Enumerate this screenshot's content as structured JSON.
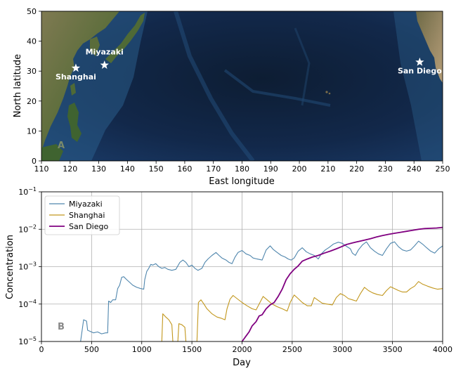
{
  "chart_data": [
    {
      "type": "map",
      "panel_label": "A",
      "xlabel": "East longitude",
      "ylabel": "North latitude",
      "xlim": [
        110,
        250
      ],
      "ylim": [
        0,
        50
      ],
      "xticks": [
        110,
        120,
        130,
        140,
        150,
        160,
        170,
        180,
        190,
        200,
        210,
        220,
        230,
        240,
        250
      ],
      "yticks": [
        0,
        10,
        20,
        30,
        40,
        50
      ],
      "markers": [
        {
          "label": "Miyazaki",
          "lon": 132,
          "lat": 32
        },
        {
          "label": "Shanghai",
          "lon": 122,
          "lat": 31
        },
        {
          "label": "San Diego",
          "lon": 242,
          "lat": 33
        }
      ]
    },
    {
      "type": "line",
      "panel_label": "B",
      "xlabel": "Day",
      "ylabel": "Concentration",
      "xlim": [
        0,
        4000
      ],
      "ylim": [
        1e-05,
        0.1
      ],
      "yscale": "log",
      "grid": true,
      "legend_position": "top-left",
      "xticks": [
        0,
        500,
        1000,
        1500,
        2000,
        2500,
        3000,
        3500,
        4000
      ],
      "yticks": [
        {
          "value": 1e-05,
          "label": "10",
          "exp": "−5"
        },
        {
          "value": 0.0001,
          "label": "10",
          "exp": "−4"
        },
        {
          "value": 0.001,
          "label": "10",
          "exp": "−3"
        },
        {
          "value": 0.01,
          "label": "10",
          "exp": "−2"
        },
        {
          "value": 0.1,
          "label": "10",
          "exp": "−1"
        }
      ],
      "series": [
        {
          "name": "Miyazaki",
          "color": "#4f86ad",
          "points": [
            [
              390,
              1e-05
            ],
            [
              420,
              3.8e-05
            ],
            [
              450,
              3.5e-05
            ],
            [
              460,
              2e-05
            ],
            [
              520,
              1.7e-05
            ],
            [
              560,
              1.8e-05
            ],
            [
              600,
              1.6e-05
            ],
            [
              640,
              1.7e-05
            ],
            [
              660,
              1.7e-05
            ],
            [
              670,
              0.00012
            ],
            [
              690,
              0.00011
            ],
            [
              710,
              0.00013
            ],
            [
              740,
              0.00013
            ],
            [
              760,
              0.00026
            ],
            [
              780,
              0.00032
            ],
            [
              800,
              0.00052
            ],
            [
              820,
              0.00054
            ],
            [
              850,
              0.00045
            ],
            [
              880,
              0.00038
            ],
            [
              910,
              0.00032
            ],
            [
              950,
              0.00028
            ],
            [
              990,
              0.00026
            ],
            [
              1020,
              0.00025
            ],
            [
              1030,
              0.00045
            ],
            [
              1050,
              0.00075
            ],
            [
              1070,
              0.0009
            ],
            [
              1090,
              0.00115
            ],
            [
              1110,
              0.0011
            ],
            [
              1140,
              0.0012
            ],
            [
              1170,
              0.001
            ],
            [
              1200,
              0.0009
            ],
            [
              1230,
              0.00095
            ],
            [
              1260,
              0.00085
            ],
            [
              1300,
              0.0008
            ],
            [
              1340,
              0.00085
            ],
            [
              1380,
              0.0013
            ],
            [
              1410,
              0.0015
            ],
            [
              1440,
              0.0013
            ],
            [
              1470,
              0.001
            ],
            [
              1500,
              0.0011
            ],
            [
              1530,
              0.0009
            ],
            [
              1560,
              0.0008
            ],
            [
              1600,
              0.0009
            ],
            [
              1630,
              0.0013
            ],
            [
              1660,
              0.0016
            ],
            [
              1700,
              0.002
            ],
            [
              1740,
              0.0024
            ],
            [
              1770,
              0.002
            ],
            [
              1800,
              0.0017
            ],
            [
              1840,
              0.0015
            ],
            [
              1870,
              0.0013
            ],
            [
              1900,
              0.0012
            ],
            [
              1930,
              0.0018
            ],
            [
              1960,
              0.0024
            ],
            [
              2000,
              0.0027
            ],
            [
              2040,
              0.0022
            ],
            [
              2080,
              0.002
            ],
            [
              2110,
              0.0017
            ],
            [
              2150,
              0.0016
            ],
            [
              2200,
              0.0015
            ],
            [
              2240,
              0.0028
            ],
            [
              2280,
              0.0036
            ],
            [
              2310,
              0.0029
            ],
            [
              2350,
              0.0024
            ],
            [
              2390,
              0.002
            ],
            [
              2430,
              0.0018
            ],
            [
              2460,
              0.0016
            ],
            [
              2490,
              0.0015
            ],
            [
              2520,
              0.0017
            ],
            [
              2560,
              0.0026
            ],
            [
              2600,
              0.0032
            ],
            [
              2640,
              0.0025
            ],
            [
              2680,
              0.0022
            ],
            [
              2720,
              0.002
            ],
            [
              2760,
              0.0016
            ],
            [
              2790,
              0.0022
            ],
            [
              2830,
              0.0028
            ],
            [
              2870,
              0.0033
            ],
            [
              2910,
              0.004
            ],
            [
              2960,
              0.0045
            ],
            [
              3000,
              0.0042
            ],
            [
              3040,
              0.0035
            ],
            [
              3080,
              0.003
            ],
            [
              3100,
              0.0023
            ],
            [
              3130,
              0.002
            ],
            [
              3160,
              0.0028
            ],
            [
              3200,
              0.0038
            ],
            [
              3240,
              0.0046
            ],
            [
              3280,
              0.0032
            ],
            [
              3320,
              0.0026
            ],
            [
              3360,
              0.0022
            ],
            [
              3400,
              0.002
            ],
            [
              3440,
              0.003
            ],
            [
              3480,
              0.0042
            ],
            [
              3520,
              0.0046
            ],
            [
              3560,
              0.0034
            ],
            [
              3600,
              0.0028
            ],
            [
              3640,
              0.0026
            ],
            [
              3680,
              0.0028
            ],
            [
              3720,
              0.0036
            ],
            [
              3760,
              0.0048
            ],
            [
              3800,
              0.004
            ],
            [
              3840,
              0.0032
            ],
            [
              3880,
              0.0026
            ],
            [
              3920,
              0.0023
            ],
            [
              3960,
              0.003
            ],
            [
              4000,
              0.0036
            ]
          ]
        },
        {
          "name": "Shanghai",
          "color": "#c2971d",
          "points": [
            [
              1200,
              1e-05
            ],
            [
              1210,
              5.5e-05
            ],
            [
              1240,
              4.5e-05
            ],
            [
              1270,
              3.8e-05
            ],
            [
              1300,
              2.8e-05
            ],
            [
              1310,
              1e-05
            ],
            [
              1360,
              1e-05
            ],
            [
              1370,
              3e-05
            ],
            [
              1400,
              2.8e-05
            ],
            [
              1430,
              2.4e-05
            ],
            [
              1440,
              1e-05
            ],
            [
              1550,
              1e-05
            ],
            [
              1565,
              0.00011
            ],
            [
              1590,
              0.00013
            ],
            [
              1620,
              0.0001
            ],
            [
              1650,
              7.5e-05
            ],
            [
              1700,
              5.5e-05
            ],
            [
              1750,
              4.5e-05
            ],
            [
              1790,
              4.2e-05
            ],
            [
              1830,
              3.8e-05
            ],
            [
              1850,
              7.5e-05
            ],
            [
              1880,
              0.000135
            ],
            [
              1910,
              0.00017
            ],
            [
              1950,
              0.00014
            ],
            [
              2000,
              0.00011
            ],
            [
              2050,
              9e-05
            ],
            [
              2100,
              7.5e-05
            ],
            [
              2140,
              7e-05
            ],
            [
              2170,
              0.0001
            ],
            [
              2210,
              0.00016
            ],
            [
              2250,
              0.00013
            ],
            [
              2300,
              0.0001
            ],
            [
              2350,
              8.5e-05
            ],
            [
              2400,
              7.5e-05
            ],
            [
              2450,
              6.5e-05
            ],
            [
              2480,
              0.00011
            ],
            [
              2520,
              0.000175
            ],
            [
              2560,
              0.00014
            ],
            [
              2600,
              0.00011
            ],
            [
              2650,
              9e-05
            ],
            [
              2690,
              9e-05
            ],
            [
              2720,
              0.00015
            ],
            [
              2760,
              0.000125
            ],
            [
              2800,
              0.000105
            ],
            [
              2850,
              0.0001
            ],
            [
              2900,
              9.5e-05
            ],
            [
              2940,
              0.00015
            ],
            [
              2980,
              0.00019
            ],
            [
              3020,
              0.00017
            ],
            [
              3060,
              0.00014
            ],
            [
              3100,
              0.00013
            ],
            [
              3140,
              0.00012
            ],
            [
              3180,
              0.00019
            ],
            [
              3220,
              0.00028
            ],
            [
              3260,
              0.00023
            ],
            [
              3300,
              0.0002
            ],
            [
              3350,
              0.00018
            ],
            [
              3400,
              0.00017
            ],
            [
              3440,
              0.00023
            ],
            [
              3480,
              0.00029
            ],
            [
              3520,
              0.00026
            ],
            [
              3560,
              0.00023
            ],
            [
              3600,
              0.00021
            ],
            [
              3640,
              0.00021
            ],
            [
              3680,
              0.00026
            ],
            [
              3720,
              0.0003
            ],
            [
              3760,
              0.0004
            ],
            [
              3800,
              0.00034
            ],
            [
              3850,
              0.0003
            ],
            [
              3900,
              0.00027
            ],
            [
              3950,
              0.00025
            ],
            [
              4000,
              0.00026
            ]
          ]
        },
        {
          "name": "San Diego",
          "color": "#800080",
          "points": [
            [
              2000,
              1e-05
            ],
            [
              2040,
              1.4e-05
            ],
            [
              2070,
              1.8e-05
            ],
            [
              2100,
              2.6e-05
            ],
            [
              2140,
              3.4e-05
            ],
            [
              2170,
              4.8e-05
            ],
            [
              2200,
              5.2e-05
            ],
            [
              2240,
              7.5e-05
            ],
            [
              2280,
              9.5e-05
            ],
            [
              2320,
              0.00011
            ],
            [
              2360,
              0.00016
            ],
            [
              2400,
              0.00025
            ],
            [
              2440,
              0.00045
            ],
            [
              2480,
              0.00065
            ],
            [
              2520,
              0.00085
            ],
            [
              2560,
              0.00105
            ],
            [
              2600,
              0.0014
            ],
            [
              2650,
              0.0016
            ],
            [
              2700,
              0.0018
            ],
            [
              2760,
              0.002
            ],
            [
              2820,
              0.0023
            ],
            [
              2880,
              0.0026
            ],
            [
              2940,
              0.003
            ],
            [
              2990,
              0.0034
            ],
            [
              3040,
              0.0039
            ],
            [
              3100,
              0.0043
            ],
            [
              3160,
              0.0047
            ],
            [
              3220,
              0.0051
            ],
            [
              3280,
              0.0056
            ],
            [
              3340,
              0.0062
            ],
            [
              3400,
              0.0068
            ],
            [
              3460,
              0.0073
            ],
            [
              3520,
              0.0078
            ],
            [
              3580,
              0.0083
            ],
            [
              3640,
              0.0088
            ],
            [
              3700,
              0.0094
            ],
            [
              3760,
              0.01
            ],
            [
              3820,
              0.0104
            ],
            [
              3880,
              0.0106
            ],
            [
              3940,
              0.0108
            ],
            [
              4000,
              0.0112
            ]
          ]
        }
      ]
    }
  ]
}
